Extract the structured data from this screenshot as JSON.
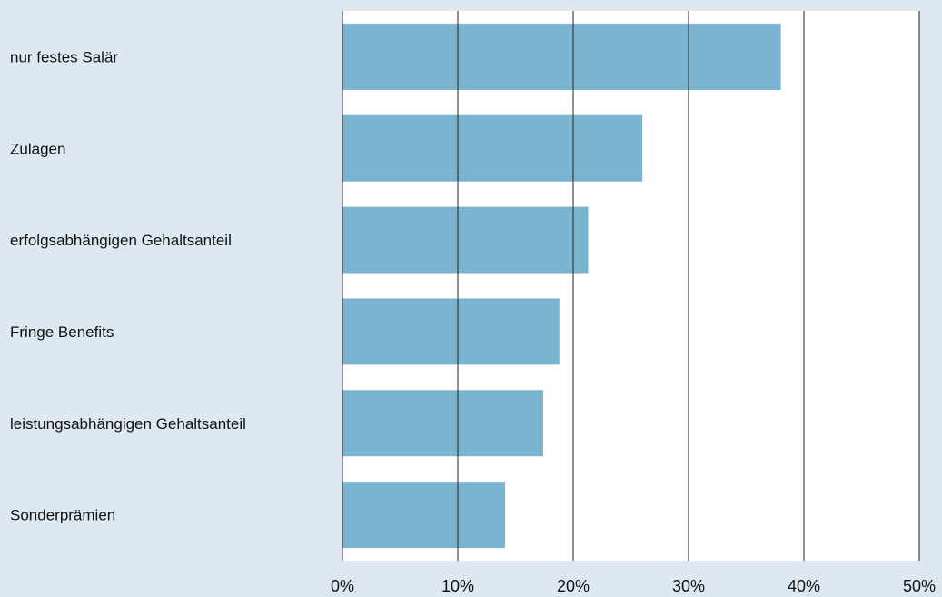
{
  "chart_data": {
    "type": "bar",
    "orientation": "horizontal",
    "categories": [
      "nur festes Salär",
      "Zulagen",
      "erfolgsabhängigen Gehaltsanteil",
      "Fringe Benefits",
      "leistungsabhängigen Gehaltsanteil",
      "Sonderprämien"
    ],
    "values": [
      38,
      26,
      21.3,
      18.8,
      17.4,
      14.1
    ],
    "xlim": [
      0,
      50
    ],
    "x_ticks": [
      0,
      10,
      20,
      30,
      40,
      50
    ],
    "x_tick_labels": [
      "0%",
      "10%",
      "20%",
      "30%",
      "40%",
      "50%"
    ],
    "grid": "vertical",
    "legend": "none",
    "bar_color": "#7ab4d0",
    "plot_background": "#ffffff",
    "page_background": "#dde8f3",
    "gridline_color": "#222222"
  }
}
